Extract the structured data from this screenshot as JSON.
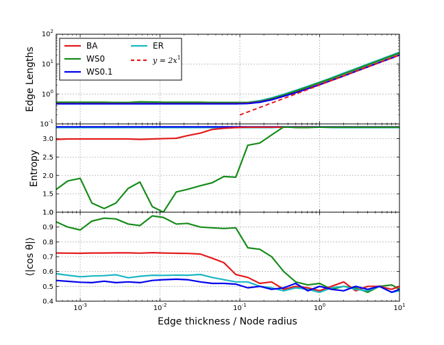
{
  "chart_data": {
    "type": "line",
    "xlabel": "Edge thickness / Node radius",
    "x_scale": "log",
    "xlim": [
      0.0005,
      10
    ],
    "x_ticks": [
      {
        "value": 0.001,
        "label": "10",
        "exp": "-3"
      },
      {
        "value": 0.01,
        "label": "10",
        "exp": "-2"
      },
      {
        "value": 0.1,
        "label": "10",
        "exp": "-1"
      },
      {
        "value": 1,
        "label": "10",
        "exp": "0"
      },
      {
        "value": 10,
        "label": "10",
        "exp": "1"
      }
    ],
    "x": [
      0.0005,
      0.0007,
      0.001,
      0.0014,
      0.002,
      0.0028,
      0.004,
      0.0056,
      0.008,
      0.011,
      0.016,
      0.022,
      0.032,
      0.045,
      0.063,
      0.089,
      0.126,
      0.178,
      0.25,
      0.355,
      0.5,
      0.71,
      1.0,
      1.41,
      2.0,
      2.82,
      4.0,
      5.6,
      8.0,
      10
    ],
    "legend": {
      "entries": [
        {
          "name": "BA",
          "color": "#e31a1c",
          "dash": false
        },
        {
          "name": "WS0",
          "color": "#168c1a",
          "dash": false
        },
        {
          "name": "WS0.1",
          "color": "#0000ee",
          "dash": false
        },
        {
          "name": "ER",
          "color": "#1ab7c4",
          "dash": false
        },
        {
          "name": "y = 2x",
          "color": "#e31a1c",
          "dash": true,
          "math_base": "y = 2x",
          "math_exp": "1"
        }
      ]
    },
    "panels": [
      {
        "id": "lengths",
        "ylabel": "Edge Lengths",
        "y_scale": "log",
        "ylim": [
          0.1,
          100
        ],
        "y_ticks": [
          {
            "value": 0.1,
            "label": "10",
            "exp": "-1"
          },
          {
            "value": 1,
            "label": "10",
            "exp": "0"
          },
          {
            "value": 10,
            "label": "10",
            "exp": "1"
          },
          {
            "value": 100,
            "label": "10",
            "exp": "2"
          }
        ],
        "series": [
          {
            "name": "ER",
            "color": "#1ab7c4",
            "width": 2.2,
            "values": [
              0.52,
              0.52,
              0.52,
              0.52,
              0.52,
              0.52,
              0.52,
              0.52,
              0.52,
              0.52,
              0.52,
              0.52,
              0.52,
              0.52,
              0.52,
              0.52,
              0.52,
              0.6,
              0.74,
              0.98,
              1.32,
              1.82,
              2.5,
              3.5,
              5.0,
              7.0,
              10.0,
              14.0,
              20.0,
              25.0
            ]
          },
          {
            "name": "WS0",
            "color": "#168c1a",
            "width": 2.2,
            "values": [
              0.53,
              0.53,
              0.53,
              0.53,
              0.53,
              0.52,
              0.52,
              0.55,
              0.54,
              0.53,
              0.53,
              0.53,
              0.53,
              0.52,
              0.52,
              0.52,
              0.52,
              0.56,
              0.7,
              0.92,
              1.25,
              1.72,
              2.4,
              3.3,
              4.7,
              6.6,
              9.4,
              13.2,
              18.8,
              23.5
            ]
          },
          {
            "name": "BA",
            "color": "#e31a1c",
            "width": 2.2,
            "values": [
              0.48,
              0.48,
              0.48,
              0.48,
              0.48,
              0.48,
              0.48,
              0.48,
              0.48,
              0.48,
              0.48,
              0.48,
              0.48,
              0.48,
              0.48,
              0.48,
              0.49,
              0.54,
              0.65,
              0.85,
              1.12,
              1.52,
              2.1,
              2.9,
              4.1,
              5.8,
              8.2,
              11.5,
              16.4,
              20.5
            ]
          },
          {
            "name": "WS0.1",
            "color": "#0000ee",
            "width": 2.2,
            "values": [
              0.47,
              0.47,
              0.47,
              0.47,
              0.47,
              0.47,
              0.47,
              0.47,
              0.47,
              0.47,
              0.47,
              0.47,
              0.47,
              0.47,
              0.47,
              0.47,
              0.48,
              0.53,
              0.64,
              0.84,
              1.1,
              1.5,
              2.05,
              2.85,
              4.0,
              5.7,
              8.0,
              11.3,
              16.0,
              20.0
            ]
          },
          {
            "name": "y = 2x",
            "color": "#e31a1c",
            "width": 2,
            "dash": true,
            "x": [
              0.1,
              10
            ],
            "values": [
              0.2,
              20
            ]
          }
        ]
      },
      {
        "id": "entropy",
        "ylabel": "Entropy",
        "y_scale": "linear",
        "ylim": [
          1.0,
          3.4
        ],
        "y_ticks": [
          {
            "value": 1.0,
            "label": "1.0"
          },
          {
            "value": 1.5,
            "label": "1.5"
          },
          {
            "value": 2.0,
            "label": "2.0"
          },
          {
            "value": 2.5,
            "label": "2.5"
          },
          {
            "value": 3.0,
            "label": "3.0"
          }
        ],
        "series": [
          {
            "name": "ER",
            "color": "#1ab7c4",
            "width": 2.2,
            "values": [
              3.3,
              3.3,
              3.3,
              3.3,
              3.3,
              3.3,
              3.3,
              3.3,
              3.3,
              3.3,
              3.3,
              3.3,
              3.3,
              3.3,
              3.3,
              3.3,
              3.3,
              3.3,
              3.3,
              3.31,
              3.31,
              3.31,
              3.31,
              3.3,
              3.3,
              3.3,
              3.3,
              3.3,
              3.3,
              3.3
            ]
          },
          {
            "name": "WS0.1",
            "color": "#0000ee",
            "width": 2.2,
            "values": [
              3.32,
              3.32,
              3.32,
              3.32,
              3.32,
              3.32,
              3.32,
              3.32,
              3.32,
              3.32,
              3.32,
              3.32,
              3.32,
              3.32,
              3.32,
              3.32,
              3.32,
              3.32,
              3.32,
              3.32,
              3.32,
              3.32,
              3.32,
              3.32,
              3.32,
              3.32,
              3.32,
              3.32,
              3.32,
              3.32
            ]
          },
          {
            "name": "BA",
            "color": "#e31a1c",
            "width": 2.2,
            "values": [
              2.98,
              2.99,
              2.99,
              2.99,
              2.99,
              2.99,
              2.99,
              2.98,
              2.99,
              3.0,
              3.01,
              3.08,
              3.15,
              3.25,
              3.28,
              3.3,
              3.31,
              3.31,
              3.31,
              3.31,
              3.31,
              3.31,
              3.31,
              3.31,
              3.31,
              3.31,
              3.31,
              3.31,
              3.31,
              3.31
            ]
          },
          {
            "name": "WS0",
            "color": "#168c1a",
            "width": 2.2,
            "values": [
              1.62,
              1.85,
              1.92,
              1.25,
              1.1,
              1.25,
              1.65,
              1.82,
              1.15,
              1.0,
              1.55,
              1.62,
              1.72,
              1.8,
              1.97,
              1.95,
              2.82,
              2.88,
              3.1,
              3.32,
              3.3,
              3.3,
              3.31,
              3.31,
              3.31,
              3.31,
              3.31,
              3.31,
              3.31,
              3.31
            ]
          }
        ]
      },
      {
        "id": "cos",
        "ylabel": "⟨|cos θ|⟩",
        "y_scale": "linear",
        "ylim": [
          0.4,
          1.0
        ],
        "y_ticks": [
          {
            "value": 0.4,
            "label": "0.4"
          },
          {
            "value": 0.5,
            "label": "0.5"
          },
          {
            "value": 0.6,
            "label": "0.6"
          },
          {
            "value": 0.7,
            "label": "0.7"
          },
          {
            "value": 0.8,
            "label": "0.8"
          },
          {
            "value": 0.9,
            "label": "0.9"
          },
          {
            "value": 1.0,
            "label": "1.0"
          }
        ],
        "series": [
          {
            "name": "WS0",
            "color": "#168c1a",
            "width": 2.2,
            "values": [
              0.935,
              0.9,
              0.88,
              0.94,
              0.96,
              0.955,
              0.92,
              0.91,
              0.975,
              0.965,
              0.92,
              0.925,
              0.9,
              0.895,
              0.89,
              0.895,
              0.76,
              0.75,
              0.7,
              0.6,
              0.53,
              0.51,
              0.52,
              0.48,
              0.5,
              0.49,
              0.46,
              0.5,
              0.51,
              0.48
            ]
          },
          {
            "name": "BA",
            "color": "#e31a1c",
            "width": 2.2,
            "values": [
              0.725,
              0.724,
              0.723,
              0.725,
              0.725,
              0.726,
              0.726,
              0.724,
              0.727,
              0.725,
              0.723,
              0.722,
              0.718,
              0.69,
              0.66,
              0.58,
              0.56,
              0.52,
              0.53,
              0.48,
              0.5,
              0.49,
              0.47,
              0.5,
              0.53,
              0.47,
              0.5,
              0.5,
              0.48,
              0.5
            ]
          },
          {
            "name": "ER",
            "color": "#1ab7c4",
            "width": 2.2,
            "values": [
              0.585,
              0.575,
              0.565,
              0.57,
              0.572,
              0.578,
              0.558,
              0.568,
              0.575,
              0.574,
              0.576,
              0.575,
              0.58,
              0.56,
              0.545,
              0.53,
              0.53,
              0.5,
              0.49,
              0.47,
              0.49,
              0.48,
              0.46,
              0.49,
              0.5,
              0.48,
              0.47,
              0.5,
              0.46,
              0.47
            ]
          },
          {
            "name": "WS0.1",
            "color": "#0000ee",
            "width": 2.2,
            "values": [
              0.54,
              0.534,
              0.528,
              0.525,
              0.535,
              0.525,
              0.53,
              0.525,
              0.54,
              0.545,
              0.548,
              0.545,
              0.53,
              0.52,
              0.52,
              0.515,
              0.49,
              0.5,
              0.48,
              0.49,
              0.52,
              0.47,
              0.5,
              0.48,
              0.47,
              0.5,
              0.48,
              0.5,
              0.46,
              0.48
            ]
          }
        ]
      }
    ]
  }
}
